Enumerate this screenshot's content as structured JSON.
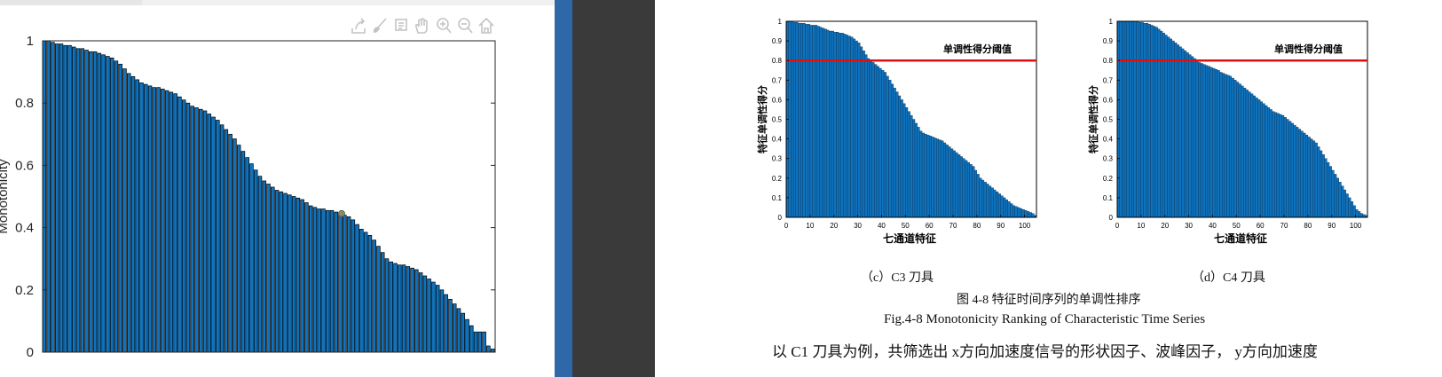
{
  "left_figure": {
    "ylabel": "Monotonicity",
    "yticks": [
      "0",
      "0.2",
      "0.4",
      "0.6",
      "0.8",
      "1"
    ],
    "toolbar_icons": [
      "export-icon",
      "brush-icon",
      "datatip-icon",
      "pan-icon",
      "zoom-in-icon",
      "zoom-out-icon",
      "home-icon"
    ],
    "colors": {
      "bar": "#0e72bd",
      "edge": "#000000",
      "marker": "#8c8c5a"
    }
  },
  "document": {
    "charts": [
      {
        "ylabel": "特征单调性得分",
        "xlabel": "七通道特征",
        "threshold_label": "单调性得分阈值",
        "yticks": [
          "0",
          "0.1",
          "0.2",
          "0.3",
          "0.4",
          "0.5",
          "0.6",
          "0.7",
          "0.8",
          "0.9",
          "1"
        ],
        "xticks": [
          "0",
          "10",
          "20",
          "30",
          "40",
          "50",
          "60",
          "70",
          "80",
          "90",
          "100"
        ],
        "caption": "（c）C3 刀具"
      },
      {
        "ylabel": "特征单调性得分",
        "xlabel": "七通道特征",
        "threshold_label": "单调性得分阈值",
        "yticks": [
          "0",
          "0.1",
          "0.2",
          "0.3",
          "0.4",
          "0.5",
          "0.6",
          "0.7",
          "0.8",
          "0.9",
          "1"
        ],
        "xticks": [
          "0",
          "10",
          "20",
          "30",
          "40",
          "50",
          "60",
          "70",
          "80",
          "90",
          "100"
        ],
        "caption": "（d）C4 刀具"
      }
    ],
    "figure_caption_cn": "图 4-8 特征时间序列的单调性排序",
    "figure_caption_en": "Fig.4-8 Monotonicity Ranking of Characteristic Time Series",
    "body_text": "以 C1 刀具为例，共筛选出 x方向加速度信号的形状因子、波峰因子， y方向加速度"
  },
  "chart_data": [
    {
      "type": "bar",
      "ylabel": "Monotonicity",
      "ylim": [
        0,
        1
      ],
      "x": [
        1,
        2,
        3,
        4,
        5,
        6,
        7,
        8,
        9,
        10,
        11,
        12,
        13,
        14,
        15,
        16,
        17,
        18,
        19,
        20,
        21,
        22,
        23,
        24,
        25,
        26,
        27,
        28,
        29,
        30,
        31,
        32,
        33,
        34,
        35,
        36,
        37,
        38,
        39,
        40,
        41,
        42,
        43,
        44,
        45,
        46,
        47,
        48,
        49,
        50,
        51,
        52,
        53,
        54,
        55,
        56,
        57,
        58,
        59,
        60,
        61,
        62,
        63,
        64,
        65,
        66,
        67,
        68,
        69,
        70,
        71,
        72,
        73,
        74,
        75,
        76,
        77,
        78,
        79,
        80,
        81,
        82,
        83,
        84,
        85,
        86,
        87,
        88,
        89,
        90,
        91,
        92,
        93,
        94,
        95,
        96,
        97,
        98,
        99,
        100,
        101,
        102,
        103,
        104,
        105,
        106,
        107
      ],
      "values": [
        1.0,
        1.0,
        0.995,
        0.99,
        0.99,
        0.985,
        0.985,
        0.98,
        0.975,
        0.975,
        0.97,
        0.965,
        0.965,
        0.96,
        0.955,
        0.95,
        0.945,
        0.935,
        0.925,
        0.91,
        0.895,
        0.885,
        0.875,
        0.865,
        0.86,
        0.855,
        0.85,
        0.85,
        0.845,
        0.84,
        0.835,
        0.83,
        0.82,
        0.81,
        0.8,
        0.79,
        0.785,
        0.78,
        0.775,
        0.765,
        0.755,
        0.745,
        0.73,
        0.715,
        0.7,
        0.685,
        0.665,
        0.645,
        0.625,
        0.605,
        0.585,
        0.565,
        0.55,
        0.54,
        0.53,
        0.52,
        0.515,
        0.51,
        0.505,
        0.5,
        0.495,
        0.49,
        0.48,
        0.47,
        0.465,
        0.46,
        0.46,
        0.455,
        0.455,
        0.45,
        0.445,
        0.44,
        0.435,
        0.425,
        0.41,
        0.395,
        0.385,
        0.375,
        0.36,
        0.34,
        0.32,
        0.3,
        0.29,
        0.285,
        0.28,
        0.28,
        0.275,
        0.27,
        0.265,
        0.255,
        0.245,
        0.235,
        0.225,
        0.215,
        0.2,
        0.185,
        0.17,
        0.155,
        0.14,
        0.125,
        0.105,
        0.085,
        0.065,
        0.065,
        0.065,
        0.02,
        0.01
      ]
    },
    {
      "type": "bar",
      "xlabel": "七通道特征",
      "ylabel": "特征单调性得分",
      "xlim": [
        0,
        105
      ],
      "ylim": [
        0,
        1
      ],
      "threshold": 0.8,
      "threshold_label": "单调性得分阈值",
      "x": [
        1,
        2,
        3,
        4,
        5,
        6,
        7,
        8,
        9,
        10,
        11,
        12,
        13,
        14,
        15,
        16,
        17,
        18,
        19,
        20,
        21,
        22,
        23,
        24,
        25,
        26,
        27,
        28,
        29,
        30,
        31,
        32,
        33,
        34,
        35,
        36,
        37,
        38,
        39,
        40,
        41,
        42,
        43,
        44,
        45,
        46,
        47,
        48,
        49,
        50,
        51,
        52,
        53,
        54,
        55,
        56,
        57,
        58,
        59,
        60,
        61,
        62,
        63,
        64,
        65,
        66,
        67,
        68,
        69,
        70,
        71,
        72,
        73,
        74,
        75,
        76,
        77,
        78,
        79,
        80,
        81,
        82,
        83,
        84,
        85,
        86,
        87,
        88,
        89,
        90,
        91,
        92,
        93,
        94,
        95,
        96,
        97,
        98,
        99,
        100,
        101,
        102,
        103,
        104,
        105
      ],
      "values": [
        1.0,
        1.0,
        1.0,
        0.995,
        0.995,
        0.99,
        0.99,
        0.99,
        0.985,
        0.985,
        0.98,
        0.98,
        0.98,
        0.975,
        0.97,
        0.965,
        0.96,
        0.955,
        0.95,
        0.95,
        0.945,
        0.945,
        0.94,
        0.94,
        0.935,
        0.93,
        0.925,
        0.92,
        0.91,
        0.9,
        0.89,
        0.87,
        0.85,
        0.83,
        0.81,
        0.8,
        0.79,
        0.78,
        0.77,
        0.76,
        0.75,
        0.74,
        0.72,
        0.7,
        0.68,
        0.66,
        0.64,
        0.62,
        0.6,
        0.58,
        0.56,
        0.54,
        0.52,
        0.5,
        0.48,
        0.46,
        0.44,
        0.43,
        0.425,
        0.42,
        0.415,
        0.41,
        0.405,
        0.4,
        0.395,
        0.39,
        0.38,
        0.37,
        0.36,
        0.35,
        0.34,
        0.33,
        0.32,
        0.31,
        0.3,
        0.29,
        0.28,
        0.27,
        0.26,
        0.24,
        0.22,
        0.2,
        0.19,
        0.18,
        0.17,
        0.16,
        0.15,
        0.14,
        0.13,
        0.12,
        0.11,
        0.1,
        0.09,
        0.08,
        0.07,
        0.06,
        0.055,
        0.05,
        0.045,
        0.04,
        0.035,
        0.03,
        0.025,
        0.02,
        0.01
      ]
    },
    {
      "type": "bar",
      "xlabel": "七通道特征",
      "ylabel": "特征单调性得分",
      "xlim": [
        0,
        105
      ],
      "ylim": [
        0,
        1
      ],
      "threshold": 0.8,
      "threshold_label": "单调性得分阈值",
      "x": [
        1,
        2,
        3,
        4,
        5,
        6,
        7,
        8,
        9,
        10,
        11,
        12,
        13,
        14,
        15,
        16,
        17,
        18,
        19,
        20,
        21,
        22,
        23,
        24,
        25,
        26,
        27,
        28,
        29,
        30,
        31,
        32,
        33,
        34,
        35,
        36,
        37,
        38,
        39,
        40,
        41,
        42,
        43,
        44,
        45,
        46,
        47,
        48,
        49,
        50,
        51,
        52,
        53,
        54,
        55,
        56,
        57,
        58,
        59,
        60,
        61,
        62,
        63,
        64,
        65,
        66,
        67,
        68,
        69,
        70,
        71,
        72,
        73,
        74,
        75,
        76,
        77,
        78,
        79,
        80,
        81,
        82,
        83,
        84,
        85,
        86,
        87,
        88,
        89,
        90,
        91,
        92,
        93,
        94,
        95,
        96,
        97,
        98,
        99,
        100,
        101,
        102,
        103,
        104,
        105
      ],
      "values": [
        1.0,
        1.0,
        1.0,
        1.0,
        1.0,
        1.0,
        1.0,
        1.0,
        1.0,
        0.995,
        0.995,
        0.99,
        0.99,
        0.985,
        0.98,
        0.975,
        0.97,
        0.96,
        0.95,
        0.94,
        0.93,
        0.92,
        0.91,
        0.9,
        0.89,
        0.88,
        0.87,
        0.86,
        0.85,
        0.84,
        0.83,
        0.82,
        0.81,
        0.8,
        0.79,
        0.785,
        0.78,
        0.775,
        0.77,
        0.765,
        0.76,
        0.755,
        0.75,
        0.74,
        0.735,
        0.73,
        0.725,
        0.72,
        0.71,
        0.7,
        0.69,
        0.68,
        0.67,
        0.66,
        0.65,
        0.64,
        0.63,
        0.62,
        0.61,
        0.6,
        0.59,
        0.58,
        0.57,
        0.56,
        0.55,
        0.54,
        0.535,
        0.53,
        0.525,
        0.52,
        0.51,
        0.5,
        0.49,
        0.48,
        0.47,
        0.46,
        0.45,
        0.44,
        0.43,
        0.42,
        0.41,
        0.4,
        0.39,
        0.38,
        0.36,
        0.34,
        0.32,
        0.3,
        0.28,
        0.26,
        0.24,
        0.22,
        0.2,
        0.18,
        0.16,
        0.14,
        0.12,
        0.1,
        0.08,
        0.06,
        0.04,
        0.03,
        0.02,
        0.015,
        0.01
      ]
    }
  ]
}
